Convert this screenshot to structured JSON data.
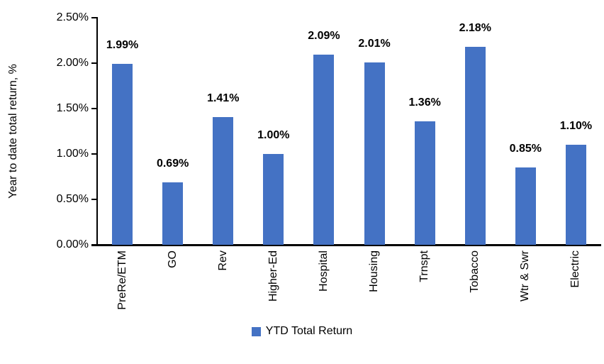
{
  "chart_data": {
    "type": "bar",
    "categories": [
      "PreRe/ETM",
      "GO",
      "Rev",
      "Higher-Ed",
      "Hospital",
      "Housing",
      "Trnspt",
      "Tobacco",
      "Wtr & Swr",
      "Electric"
    ],
    "values": [
      1.99,
      0.69,
      1.41,
      1.0,
      2.09,
      2.01,
      1.36,
      2.18,
      0.85,
      1.1
    ],
    "data_labels": [
      "1.99%",
      "0.69%",
      "1.41%",
      "1.00%",
      "2.09%",
      "2.01%",
      "1.36%",
      "2.18%",
      "0.85%",
      "1.10%"
    ],
    "title": "",
    "xlabel": "",
    "ylabel": "Year to date total return, %",
    "ylim": [
      0,
      2.5
    ],
    "yticks": [
      0,
      0.5,
      1.0,
      1.5,
      2.0,
      2.5
    ],
    "ytick_labels": [
      "0.00%",
      "0.50%",
      "1.00%",
      "1.50%",
      "2.00%",
      "2.50%"
    ],
    "legend": [
      "YTD Total Return"
    ],
    "legend_position": "bottom",
    "grid": false,
    "bar_color": "#4472C4",
    "axis_color": "#000000",
    "label_color": "#000000"
  }
}
